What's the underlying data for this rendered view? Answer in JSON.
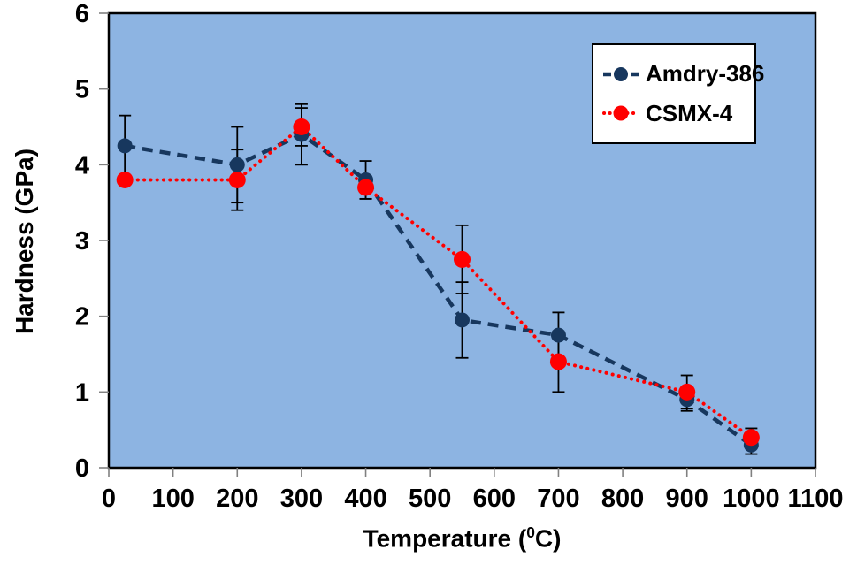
{
  "page": {
    "background": "#FFFFFF"
  },
  "chart_data": {
    "type": "line",
    "title": "",
    "ylabel": "Hardness (GPa)",
    "xlabel": {
      "prefix": "Temperature (",
      "superscript": "0",
      "suffix": "C)"
    },
    "x": [
      25,
      200,
      300,
      400,
      550,
      700,
      900,
      1000
    ],
    "xlim": [
      0,
      1100
    ],
    "ylim": [
      0,
      6
    ],
    "x_ticks": [
      0,
      100,
      200,
      300,
      400,
      500,
      600,
      700,
      800,
      900,
      1000,
      1100
    ],
    "y_ticks": [
      0,
      1,
      2,
      3,
      4,
      5,
      6
    ],
    "plot_background": "#8DB4E2",
    "axis_color": "#000000",
    "tick_mark_color": "#808080",
    "error_bar_color": "#000000",
    "grid": false,
    "legend_position": "top-right",
    "series": [
      {
        "name": "Amdry-386",
        "color": "#17375E",
        "line_style": "dashed",
        "marker": "circle",
        "values": [
          4.25,
          4.0,
          4.4,
          3.8,
          1.95,
          1.75,
          0.9,
          0.3
        ],
        "errors": [
          0.4,
          0.5,
          0.4,
          0.25,
          0.5,
          0.3,
          0.15,
          0.12
        ]
      },
      {
        "name": "CSMX-4",
        "color": "#FF0000",
        "line_style": "dotted",
        "marker": "circle",
        "values": [
          3.8,
          3.8,
          4.5,
          3.7,
          2.75,
          1.4,
          1.0,
          0.4
        ],
        "errors": [
          0,
          0.4,
          0.25,
          0.15,
          0.45,
          0.4,
          0.22,
          0.12
        ]
      }
    ]
  }
}
